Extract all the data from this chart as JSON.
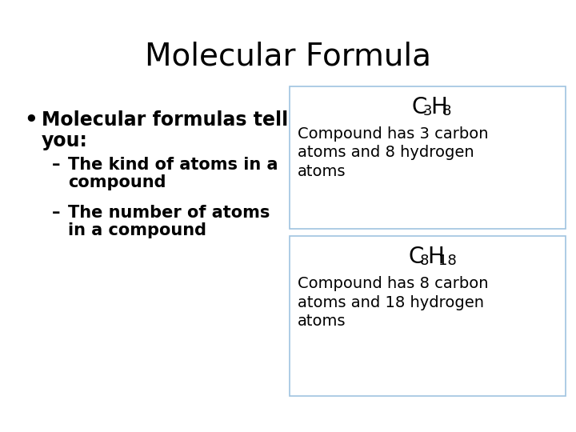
{
  "title": "Molecular Formula",
  "title_fontsize": 28,
  "bg_color": "#ffffff",
  "text_color": "#000000",
  "bullet_main_line1": "Molecular formulas tell",
  "bullet_main_line2": "you:",
  "sub_bullet1_line1": "The kind of atoms in a",
  "sub_bullet1_line2": "compound",
  "sub_bullet2_line1": "The number of atoms",
  "sub_bullet2_line2": "in a compound",
  "box1_desc": "Compound has 3 carbon\natoms and 8 hydrogen\natoms",
  "box2_desc": "Compound has 8 carbon\natoms and 18 hydrogen\natoms",
  "box_edge_color": "#a0c4e0",
  "box_face_color": "#ffffff",
  "font_family": "DejaVu Sans",
  "title_fs": 28,
  "bullet_fs": 17,
  "sub_fs": 15,
  "formula_fs": 20,
  "formula_sub_fs": 13,
  "desc_fs": 14
}
